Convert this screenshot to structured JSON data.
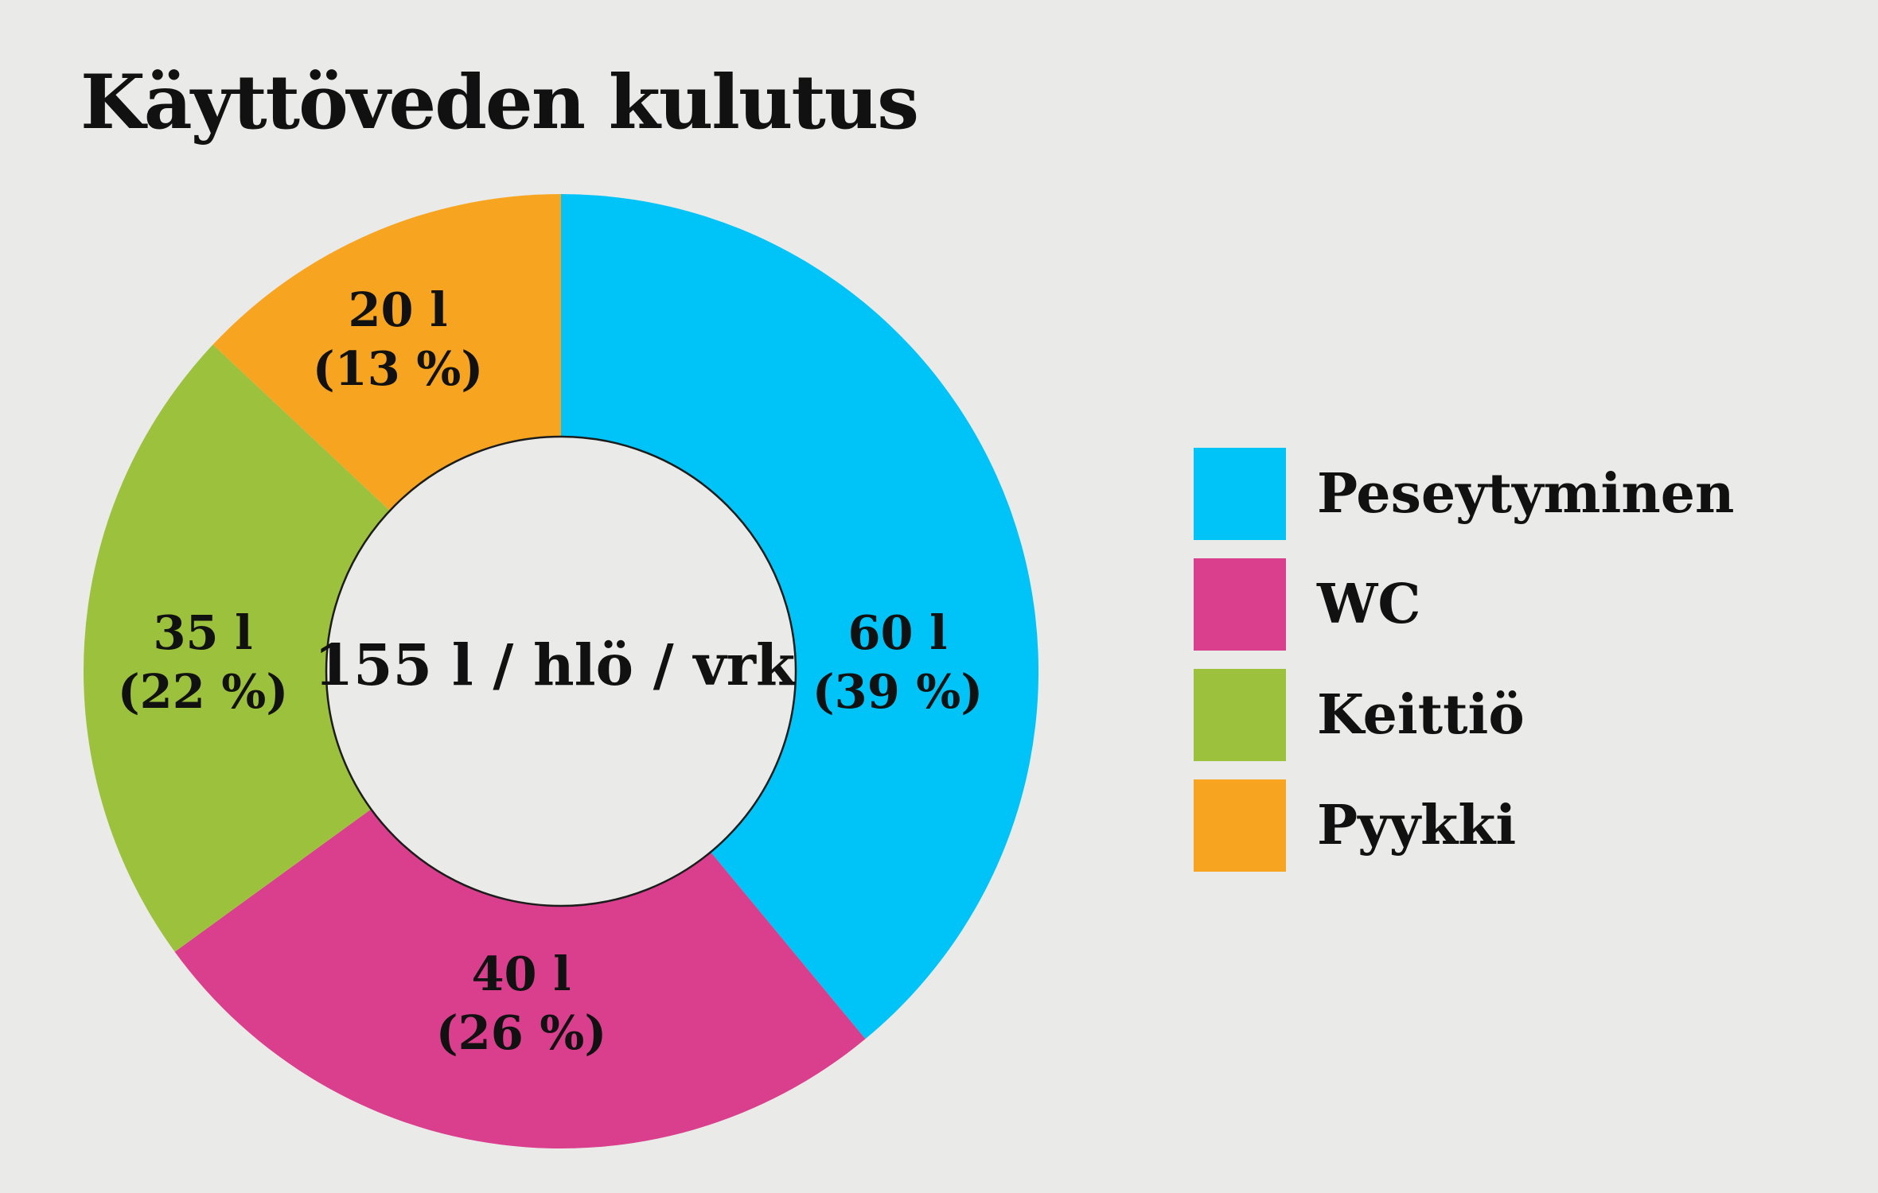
{
  "title": "Käyttöveden kulutus",
  "chart_data": {
    "type": "pie",
    "subtype": "donut",
    "title": "Käyttöveden kulutus",
    "total": 155,
    "unit": "l / hlö / vrk",
    "center_label": "155 l / hlö / vrk",
    "legend_position": "right",
    "start_angle_deg": 0,
    "direction": "clockwise",
    "slices": [
      {
        "id": "peseytyminen",
        "label": "Peseytyminen",
        "liters": 60,
        "pct": 39,
        "value_label": "60 l",
        "pct_label": "(39 %)",
        "color": "#00C3F7"
      },
      {
        "id": "wc",
        "label": "WC",
        "liters": 40,
        "pct": 26,
        "value_label": "40 l",
        "pct_label": "(26 %)",
        "color": "#D93F8C"
      },
      {
        "id": "keittio",
        "label": "Keittiö",
        "liters": 35,
        "pct": 22,
        "value_label": "35 l",
        "pct_label": "(22 %)",
        "color": "#9CC13C"
      },
      {
        "id": "pyykki",
        "label": "Pyykki",
        "liters": 20,
        "pct": 13,
        "value_label": "20 l",
        "pct_label": "(13 %)",
        "color": "#F7A521"
      }
    ],
    "colors": {
      "background": "#EAEAE8",
      "text": "#111111",
      "hole_stroke": "#1c1c1c"
    }
  }
}
